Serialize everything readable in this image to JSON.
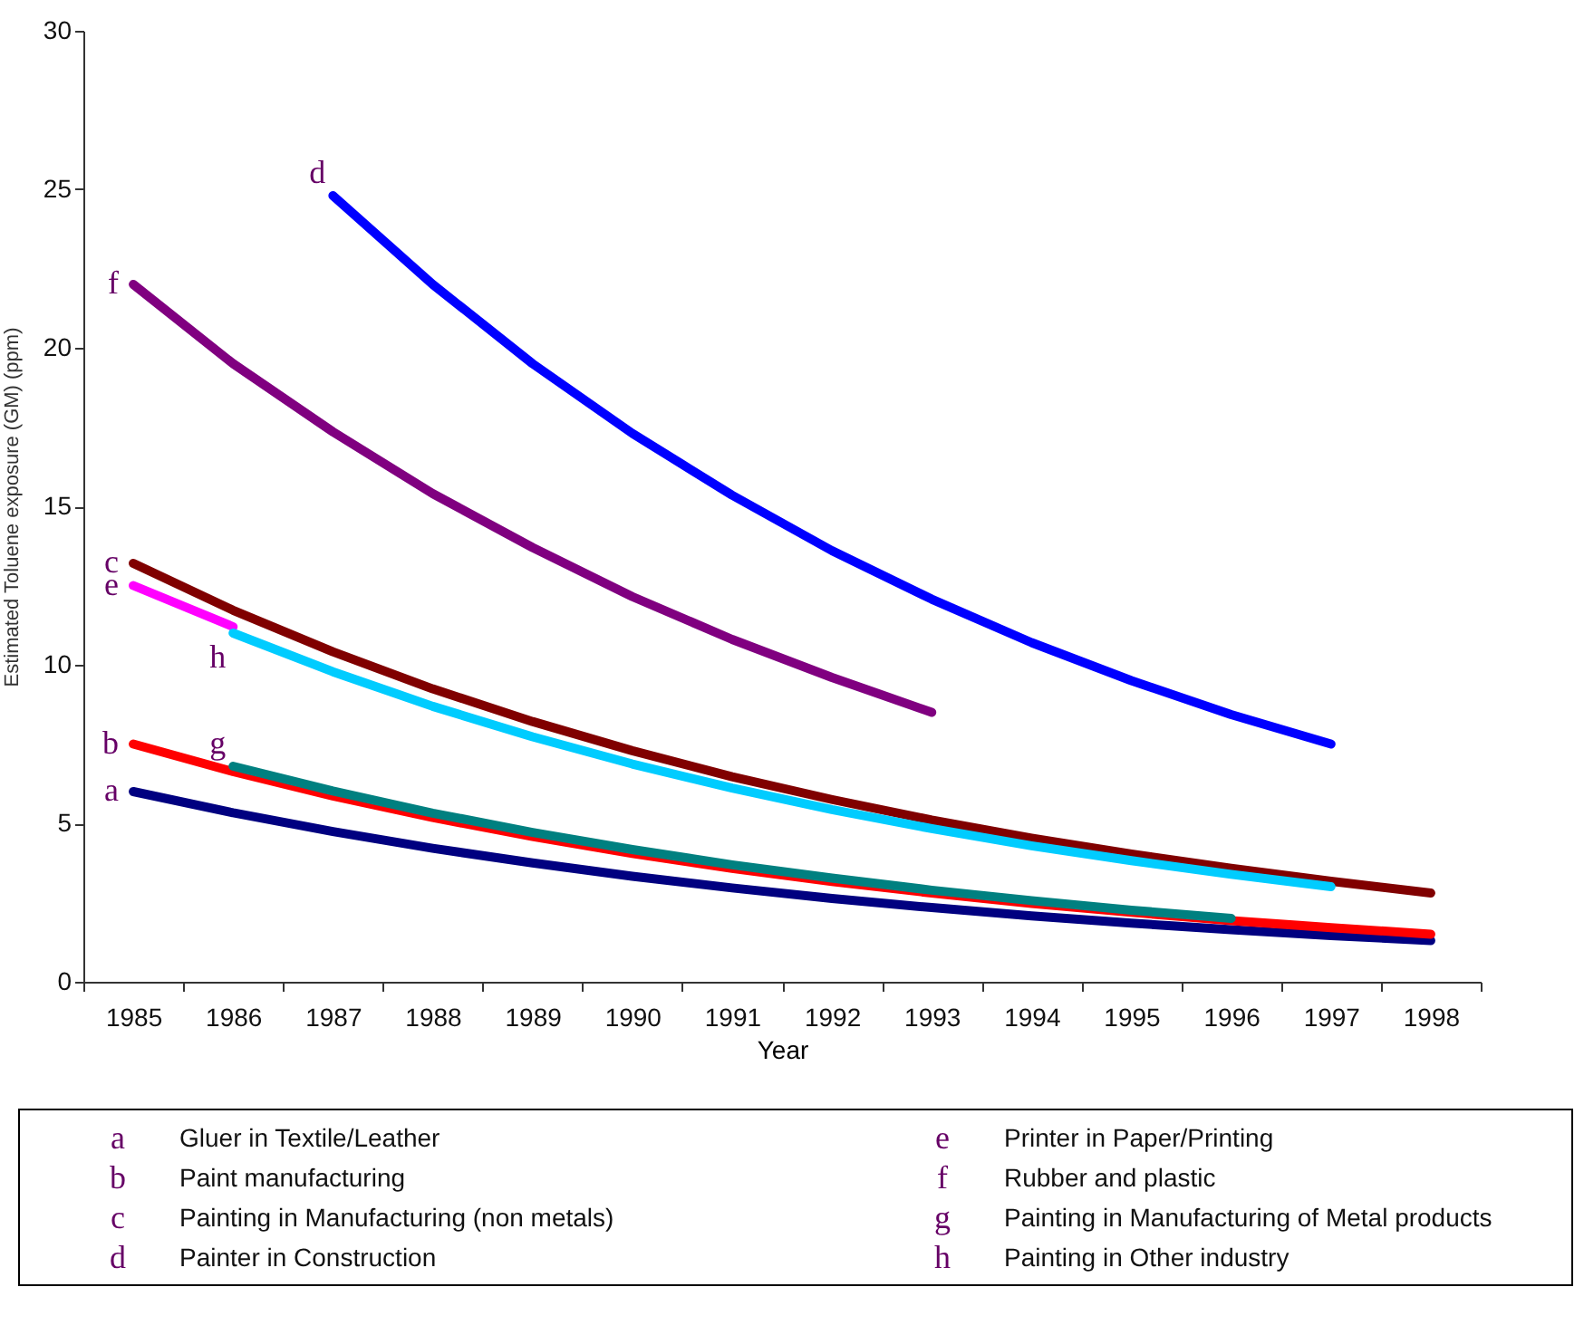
{
  "chart_data": {
    "type": "line",
    "xlabel": "Year",
    "ylabel": "Estimated Toluene exposure (GM) (ppm)",
    "categories": [
      "1985",
      "1986",
      "1987",
      "1988",
      "1989",
      "1990",
      "1991",
      "1992",
      "1993",
      "1994",
      "1995",
      "1996",
      "1997",
      "1998"
    ],
    "ylim": [
      0,
      30
    ],
    "yticks": [
      0,
      5,
      10,
      15,
      20,
      25,
      30
    ],
    "grid": false,
    "marker": "none",
    "series": [
      {
        "name": "a",
        "color": "#000080",
        "values": [
          6.0,
          5.33,
          4.74,
          4.21,
          3.75,
          3.33,
          2.96,
          2.63,
          2.34,
          2.08,
          1.85,
          1.64,
          1.46,
          1.3
        ]
      },
      {
        "name": "b",
        "color": "#ff0000",
        "values": [
          7.5,
          6.63,
          5.86,
          5.18,
          4.58,
          4.05,
          3.58,
          3.16,
          2.8,
          2.47,
          2.19,
          1.93,
          1.71,
          1.5
        ]
      },
      {
        "name": "c",
        "color": "#800000",
        "values": [
          13.2,
          11.72,
          10.41,
          9.24,
          8.21,
          7.29,
          6.47,
          5.75,
          5.1,
          4.53,
          4.03,
          3.58,
          3.17,
          2.8
        ]
      },
      {
        "name": "d",
        "color": "#0000ff",
        "values": [
          null,
          null,
          24.8,
          22.0,
          19.5,
          17.3,
          15.35,
          13.6,
          12.07,
          10.7,
          9.5,
          8.43,
          7.5,
          null
        ]
      },
      {
        "name": "e",
        "color": "#ff00ff",
        "values": [
          12.5,
          11.2,
          null,
          null,
          null,
          null,
          null,
          null,
          null,
          null,
          null,
          null,
          null,
          null
        ]
      },
      {
        "name": "f",
        "color": "#800080",
        "values": [
          22.0,
          19.5,
          17.35,
          15.4,
          13.7,
          12.15,
          10.8,
          9.6,
          8.5,
          null,
          null,
          null,
          null,
          null
        ]
      },
      {
        "name": "g",
        "color": "#008080",
        "values": [
          null,
          6.8,
          6.02,
          5.32,
          4.71,
          4.17,
          3.69,
          3.27,
          2.89,
          2.56,
          2.26,
          2.0,
          null,
          null
        ]
      },
      {
        "name": "h",
        "color": "#00ccff",
        "values": [
          null,
          11.0,
          9.78,
          8.69,
          7.73,
          6.87,
          6.11,
          5.43,
          4.83,
          4.29,
          3.82,
          3.39,
          3.0,
          null
        ]
      }
    ],
    "annotations": [
      "Gluer in Textile/Leather",
      "Paint manufacturing",
      "Painting in Manufacturing (non metals)",
      "Painter in Construction",
      "Printer in Paper/Printing",
      "Rubber and plastic",
      "Painting in Manufacturing of Metal products",
      "Painting in Other industry"
    ]
  }
}
